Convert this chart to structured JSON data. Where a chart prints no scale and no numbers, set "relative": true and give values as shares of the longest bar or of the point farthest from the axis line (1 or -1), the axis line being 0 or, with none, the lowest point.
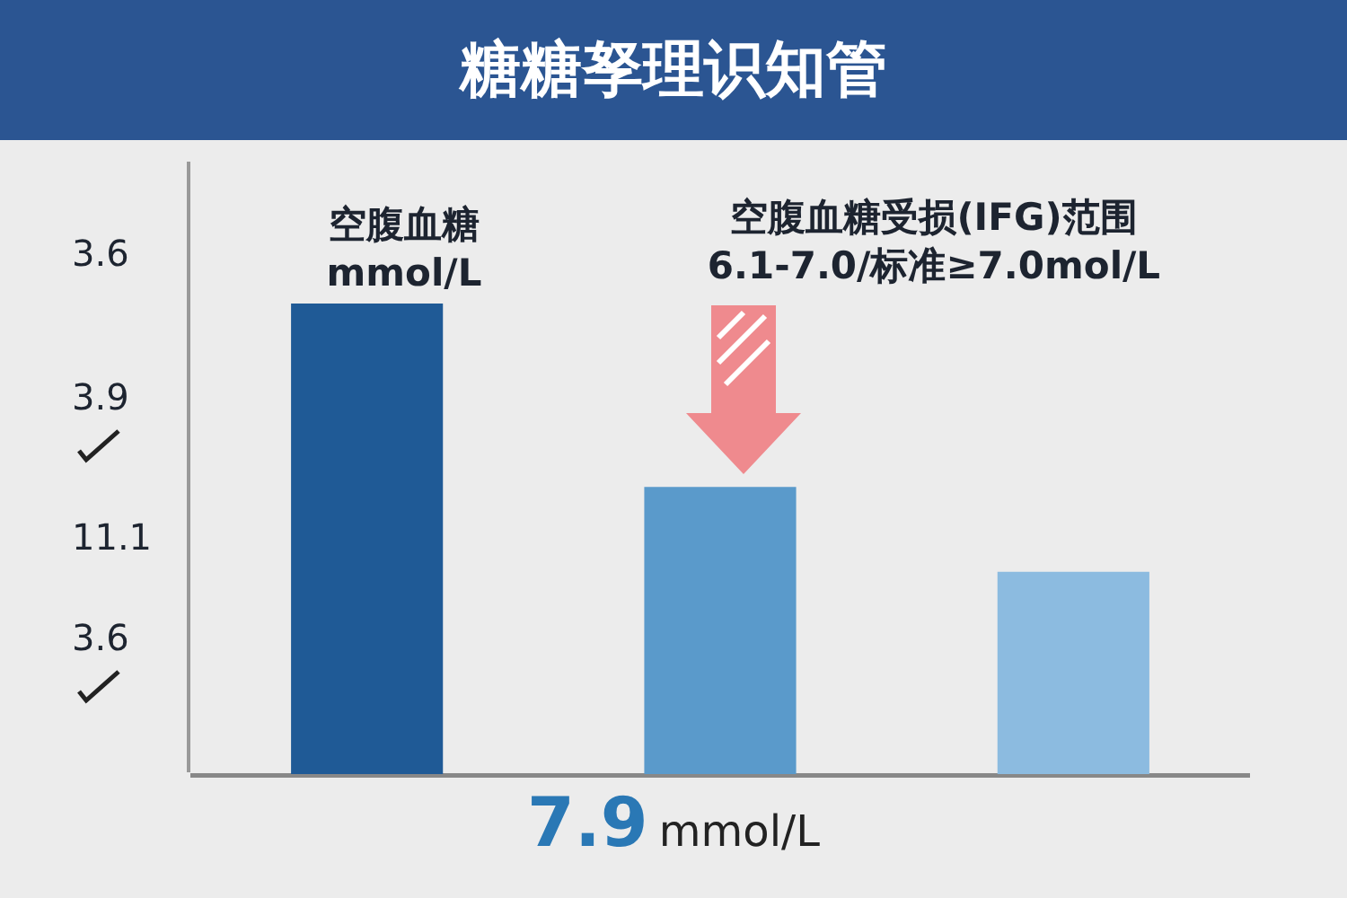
{
  "chart_data": {
    "type": "bar",
    "title": "糖糖孥理识知管",
    "categories": [
      null,
      null,
      null
    ],
    "values": [
      1,
      0.61,
      0.43
    ],
    "colors": [
      "#1f5a96",
      "#5a9acb",
      "#8cbbe0"
    ],
    "relative": true,
    "annotations": [
      "空腹血糖\nmmol/L",
      "空腹血糖受损(IFG)范围\n6.1-7.0/标准≥7.0mol/L",
      "3.6",
      "3.9",
      "11.1",
      "3.6",
      "7.9",
      "mmol/L"
    ]
  }
}
